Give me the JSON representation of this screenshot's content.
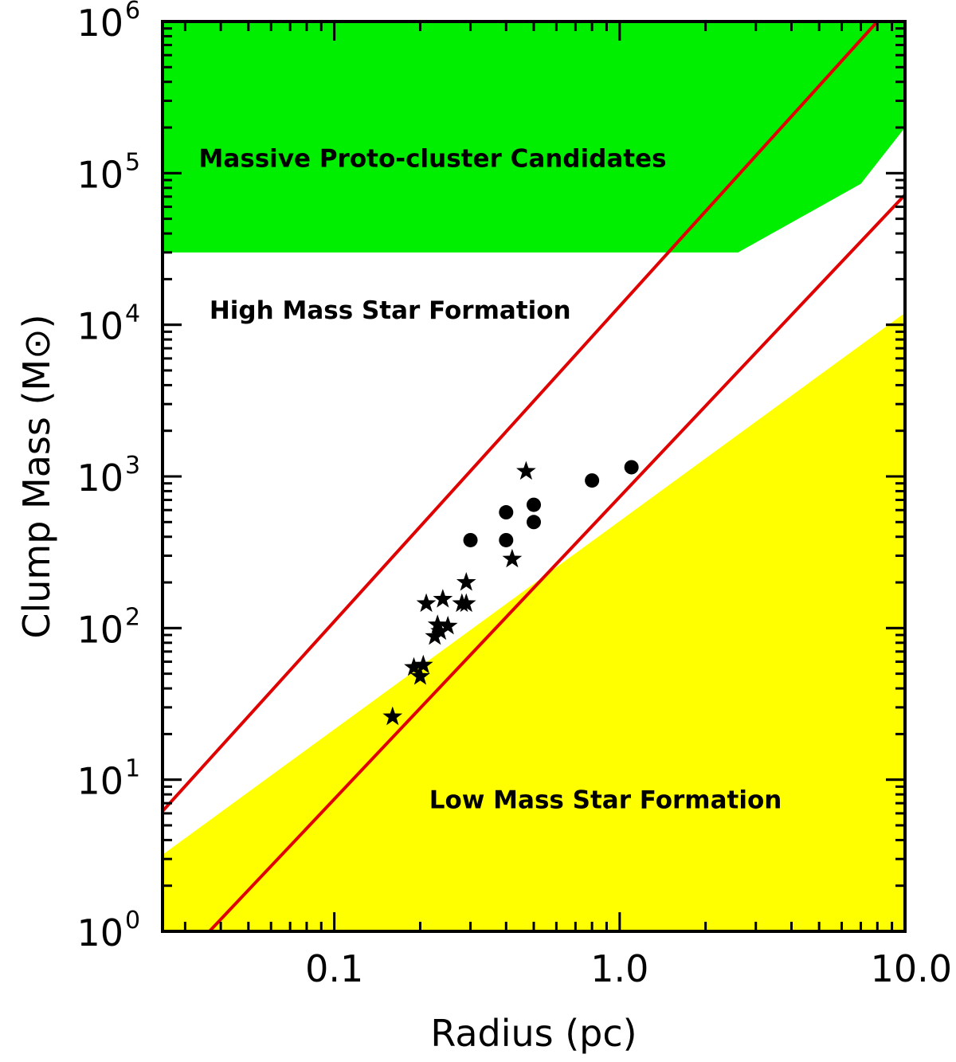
{
  "chart_data": {
    "type": "scatter",
    "title": "",
    "xlabel": "Radius (pc)",
    "ylabel": "Clump Mass (M⊙)",
    "xscale": "log",
    "yscale": "log",
    "xlim": [
      0.025,
      10.0
    ],
    "ylim": [
      1,
      1000000
    ],
    "grid": false,
    "x_ticks": [
      {
        "value": 0.1,
        "label": "0.1"
      },
      {
        "value": 1.0,
        "label": "1.0"
      },
      {
        "value": 10.0,
        "label": "10.0"
      }
    ],
    "y_ticks": [
      {
        "value": 1,
        "base": "10",
        "exp": "0"
      },
      {
        "value": 10,
        "base": "10",
        "exp": "1"
      },
      {
        "value": 100,
        "base": "10",
        "exp": "2"
      },
      {
        "value": 1000,
        "base": "10",
        "exp": "3"
      },
      {
        "value": 10000,
        "base": "10",
        "exp": "4"
      },
      {
        "value": 100000,
        "base": "10",
        "exp": "5"
      },
      {
        "value": 1000000,
        "base": "10",
        "exp": "6"
      }
    ],
    "regions": [
      {
        "name": "massive-proto-cluster",
        "label": "Massive Proto-cluster Candidates",
        "color": "#00ee00",
        "boundary": [
          [
            0.025,
            30000
          ],
          [
            2.6,
            30000
          ],
          [
            7.0,
            85000
          ],
          [
            10.0,
            200000
          ]
        ],
        "label_anchor": [
          0.0335,
          110000
        ]
      },
      {
        "name": "low-mass",
        "label": "Low Mass Star Formation",
        "color": "#ffff00",
        "boundary": [
          [
            0.025,
            3.2
          ],
          [
            10.0,
            12000
          ]
        ],
        "label_anchor": [
          0.215,
          6.5
        ]
      }
    ],
    "annotations": [
      {
        "name": "high-mass",
        "label": "High Mass Star Formation",
        "anchor": [
          0.0365,
          11000
        ]
      }
    ],
    "lines": [
      {
        "name": "upper-red-line",
        "color": "#e00000",
        "points": [
          [
            0.025,
            6.2
          ],
          [
            8.0,
            1000000
          ]
        ]
      },
      {
        "name": "lower-red-line",
        "color": "#e00000",
        "points": [
          [
            0.0365,
            1.0
          ],
          [
            10.0,
            72000
          ]
        ]
      }
    ],
    "series": [
      {
        "name": "circles",
        "marker": "circle",
        "color": "#000000",
        "points": [
          [
            0.3,
            380
          ],
          [
            0.4,
            580
          ],
          [
            0.4,
            380
          ],
          [
            0.5,
            650
          ],
          [
            0.5,
            500
          ],
          [
            0.8,
            940
          ],
          [
            1.1,
            1150
          ]
        ]
      },
      {
        "name": "stars",
        "marker": "star",
        "color": "#000000",
        "points": [
          [
            0.16,
            26
          ],
          [
            0.19,
            55
          ],
          [
            0.2,
            48
          ],
          [
            0.205,
            57
          ],
          [
            0.21,
            145
          ],
          [
            0.225,
            88
          ],
          [
            0.23,
            105
          ],
          [
            0.235,
            95
          ],
          [
            0.24,
            155
          ],
          [
            0.25,
            103
          ],
          [
            0.28,
            145
          ],
          [
            0.29,
            200
          ],
          [
            0.29,
            145
          ],
          [
            0.42,
            285
          ],
          [
            0.47,
            1080
          ]
        ]
      }
    ]
  }
}
